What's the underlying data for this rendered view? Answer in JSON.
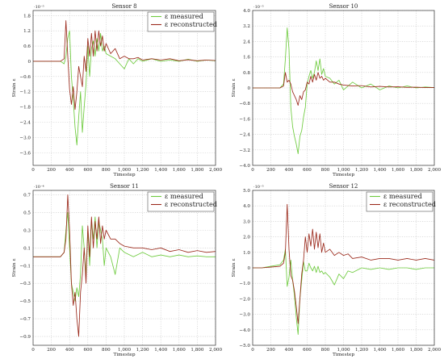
{
  "colors": {
    "measured": "#6ecb3e",
    "reconstructed": "#9b2a1c",
    "grid": "#c8c8c8"
  },
  "chart_data": [
    {
      "type": "line",
      "title": "Sensor 8",
      "xlabel": "Timestep",
      "ylabel": "Strain ε",
      "exponent": "·10⁻⁵",
      "xlim": [
        0,
        2000
      ],
      "ylim": [
        -4.1,
        2.0
      ],
      "grid": true,
      "legend": "top-right",
      "xticks": [
        0,
        200,
        400,
        600,
        800,
        1000,
        1200,
        1400,
        1600,
        1800,
        2000
      ],
      "xtick_labels": [
        "0",
        "200",
        "400",
        "600",
        "800",
        "1,000",
        "1,200",
        "1,400",
        "1,600",
        "1,800",
        "2,000"
      ],
      "yticks": [
        1.8,
        1.2,
        0.6,
        0,
        -0.6,
        -1.2,
        -1.8,
        -2.4,
        -3.0,
        -3.6
      ],
      "ytick_labels": [
        "1.8",
        "1.2",
        "0.6",
        "0",
        "−0.6",
        "−1.2",
        "−1.8",
        "−2.4",
        "−3.0",
        "−3.6"
      ],
      "series": [
        {
          "name": "ε measured",
          "key": "measured",
          "x": [
            0,
            100,
            200,
            300,
            340,
            360,
            380,
            400,
            420,
            440,
            460,
            480,
            500,
            520,
            540,
            560,
            580,
            600,
            620,
            640,
            660,
            680,
            700,
            720,
            740,
            760,
            780,
            800,
            850,
            900,
            950,
            1000,
            1050,
            1100,
            1150,
            1200,
            1300,
            1400,
            1500,
            1600,
            1700,
            1800,
            1900,
            2000
          ],
          "y": [
            0,
            0,
            0,
            0,
            -0.1,
            0.2,
            0.9,
            1.2,
            -0.6,
            -1.5,
            -2.6,
            -3.3,
            -2.2,
            -1.2,
            -2.8,
            -1.8,
            -0.9,
            0.6,
            -0.6,
            0.5,
            0.8,
            0.2,
            0.9,
            0.4,
            1.1,
            0.4,
            0.6,
            0.3,
            0.2,
            0.1,
            -0.1,
            -0.3,
            0.1,
            -0.1,
            0.1,
            0,
            0.1,
            0,
            0.05,
            0,
            0.08,
            0,
            0.05,
            0.02
          ]
        },
        {
          "name": "ε reconstructed",
          "key": "reconstructed",
          "x": [
            0,
            100,
            200,
            300,
            340,
            360,
            380,
            400,
            420,
            440,
            460,
            480,
            500,
            520,
            540,
            560,
            580,
            600,
            620,
            640,
            660,
            680,
            700,
            720,
            740,
            760,
            780,
            800,
            850,
            900,
            950,
            1000,
            1050,
            1100,
            1150,
            1200,
            1300,
            1400,
            1500,
            1600,
            1700,
            1800,
            1900,
            2000
          ],
          "y": [
            0,
            0,
            0,
            0,
            0.1,
            1.6,
            0.2,
            -1.1,
            -1.7,
            -1.0,
            -1.9,
            -1.2,
            -0.2,
            -0.6,
            -1.0,
            0.2,
            -0.4,
            0.9,
            0.2,
            1.1,
            0.2,
            1.2,
            0.4,
            1.2,
            0.6,
            1.0,
            0.4,
            0.7,
            0.3,
            0.5,
            0.1,
            0.2,
            0.1,
            0.1,
            0.15,
            0.05,
            0.1,
            0.05,
            0.1,
            0.02,
            0.06,
            0.02,
            0.05,
            0.03
          ]
        }
      ]
    },
    {
      "type": "line",
      "title": "Sensor 10",
      "xlabel": "Timestep",
      "ylabel": "Strain ε",
      "exponent": "·10⁻⁵",
      "xlim": [
        0,
        2000
      ],
      "ylim": [
        -4.0,
        4.0
      ],
      "grid": true,
      "legend": "top-right",
      "xticks": [
        0,
        200,
        400,
        600,
        800,
        1000,
        1200,
        1400,
        1600,
        1800,
        2000
      ],
      "xtick_labels": [
        "0",
        "200",
        "400",
        "600",
        "800",
        "1,000",
        "1,200",
        "1,400",
        "1,600",
        "1,800",
        "2,000"
      ],
      "yticks": [
        4.0,
        3.2,
        2.4,
        1.6,
        0.8,
        0,
        -0.8,
        -1.6,
        -2.4,
        -3.2,
        -4.0
      ],
      "ytick_labels": [
        "4.0",
        "3.2",
        "2.4",
        "1.6",
        "0.8",
        "0",
        "−0.8",
        "−1.6",
        "−2.4",
        "−3.2",
        "−4.0"
      ],
      "series": [
        {
          "name": "ε measured",
          "key": "measured",
          "x": [
            0,
            100,
            200,
            300,
            340,
            360,
            380,
            400,
            420,
            440,
            460,
            480,
            500,
            520,
            540,
            560,
            580,
            600,
            620,
            640,
            660,
            680,
            700,
            720,
            740,
            760,
            780,
            800,
            850,
            900,
            950,
            1000,
            1100,
            1200,
            1300,
            1400,
            1500,
            1600,
            1700,
            1800,
            1900,
            2000
          ],
          "y": [
            0,
            0,
            0,
            0,
            0.2,
            1.5,
            3.1,
            2.0,
            -1.0,
            -2.0,
            -2.5,
            -2.9,
            -3.4,
            -2.5,
            -2.2,
            -1.5,
            -1.0,
            0.2,
            0.6,
            0.9,
            0.5,
            0.8,
            1.4,
            0.9,
            1.5,
            0.7,
            1.0,
            0.6,
            0.5,
            0.2,
            0.4,
            -0.1,
            0.3,
            0.0,
            0.2,
            -0.1,
            0.1,
            0.0,
            0.1,
            0.0,
            0.05,
            0.02
          ]
        },
        {
          "name": "ε reconstructed",
          "key": "reconstructed",
          "x": [
            0,
            100,
            200,
            300,
            340,
            360,
            380,
            400,
            420,
            440,
            460,
            480,
            500,
            520,
            540,
            560,
            580,
            600,
            620,
            640,
            660,
            680,
            700,
            720,
            740,
            760,
            780,
            800,
            850,
            900,
            950,
            1000,
            1100,
            1200,
            1300,
            1400,
            1500,
            1600,
            1700,
            1800,
            1900,
            2000
          ],
          "y": [
            0,
            0,
            0,
            0,
            0.1,
            0.8,
            0.3,
            0.4,
            0.2,
            -0.2,
            -0.4,
            -0.6,
            -0.9,
            -0.4,
            -0.6,
            -0.2,
            -0.1,
            0.3,
            0.2,
            0.6,
            0.3,
            0.7,
            0.4,
            0.8,
            0.5,
            0.6,
            0.4,
            0.5,
            0.3,
            0.3,
            0.2,
            0.15,
            0.1,
            0.12,
            0.05,
            0.08,
            0.05,
            0.06,
            0.03,
            0.04,
            0.02,
            0.02
          ]
        }
      ]
    },
    {
      "type": "line",
      "title": "Sensor 11",
      "xlabel": "Timestep",
      "ylabel": "Strain ε",
      "exponent": "·10⁻⁴",
      "xlim": [
        0,
        2000
      ],
      "ylim": [
        -1.0,
        0.75
      ],
      "grid": true,
      "legend": "top-right",
      "xticks": [
        0,
        200,
        400,
        600,
        800,
        1000,
        1200,
        1400,
        1600,
        1800,
        2000
      ],
      "xtick_labels": [
        "0",
        "200",
        "400",
        "600",
        "800",
        "1,000",
        "1,200",
        "1,400",
        "1,600",
        "1,800",
        "2,000"
      ],
      "yticks": [
        0.7,
        0.5,
        0.3,
        0.1,
        -0.1,
        -0.3,
        -0.5,
        -0.7,
        -0.9
      ],
      "ytick_labels": [
        "0.7",
        "0.5",
        "0.3",
        "0.1",
        "−0.1",
        "−0.3",
        "−0.5",
        "−0.7",
        "−0.9"
      ],
      "series": [
        {
          "name": "ε measured",
          "key": "measured",
          "x": [
            0,
            100,
            200,
            300,
            340,
            360,
            380,
            400,
            420,
            440,
            460,
            480,
            500,
            520,
            540,
            560,
            580,
            600,
            620,
            640,
            660,
            680,
            700,
            720,
            740,
            760,
            780,
            800,
            850,
            900,
            950,
            1000,
            1100,
            1200,
            1300,
            1400,
            1500,
            1600,
            1700,
            1800,
            1900,
            2000
          ],
          "y": [
            0,
            0,
            0,
            0,
            0.05,
            0.3,
            0.5,
            0.1,
            -0.3,
            -0.4,
            -0.5,
            -0.35,
            -0.45,
            -0.2,
            0.35,
            0.1,
            -0.2,
            0.3,
            -0.1,
            0.4,
            0.2,
            0.45,
            0.1,
            0.4,
            0.3,
            0.2,
            -0.1,
            0.1,
            0.0,
            -0.2,
            0.1,
            0.05,
            0.0,
            0.05,
            0.0,
            0.02,
            0.0,
            0.02,
            0.0,
            0.01,
            0.0,
            0.0
          ]
        },
        {
          "name": "ε reconstructed",
          "key": "reconstructed",
          "x": [
            0,
            100,
            200,
            300,
            340,
            360,
            380,
            400,
            420,
            440,
            460,
            480,
            500,
            520,
            540,
            560,
            580,
            600,
            620,
            640,
            660,
            680,
            700,
            720,
            740,
            760,
            780,
            800,
            850,
            900,
            950,
            1000,
            1100,
            1200,
            1300,
            1400,
            1500,
            1600,
            1700,
            1800,
            1900,
            2000
          ],
          "y": [
            0,
            0,
            0,
            0,
            0.05,
            0.2,
            0.7,
            0.3,
            -0.3,
            -0.55,
            -0.4,
            -0.7,
            -0.9,
            -0.4,
            -0.2,
            0.1,
            -0.3,
            0.35,
            0.0,
            0.45,
            0.1,
            0.4,
            0.2,
            0.45,
            0.15,
            0.35,
            0.2,
            0.3,
            0.2,
            0.2,
            0.15,
            0.12,
            0.1,
            0.1,
            0.08,
            0.1,
            0.06,
            0.08,
            0.05,
            0.07,
            0.05,
            0.06
          ]
        }
      ]
    },
    {
      "type": "line",
      "title": "Sensor 12",
      "xlabel": "Timestep",
      "ylabel": "Strain ε",
      "exponent": "·10⁻⁵",
      "xlim": [
        0,
        2000
      ],
      "ylim": [
        -5.0,
        5.0
      ],
      "grid": true,
      "legend": "top-right",
      "xticks": [
        0,
        200,
        400,
        600,
        800,
        1000,
        1200,
        1400,
        1600,
        1800,
        2000
      ],
      "xtick_labels": [
        "0",
        "200",
        "400",
        "600",
        "800",
        "1,000",
        "1,200",
        "1,400",
        "1,600",
        "1,800",
        "2,000"
      ],
      "yticks": [
        5.0,
        4.0,
        3.0,
        2.0,
        1.0,
        0,
        -1.0,
        -2.0,
        -3.0,
        -4.0,
        -5.0
      ],
      "ytick_labels": [
        "5.0",
        "4.0",
        "3.0",
        "2.0",
        "1.0",
        "0",
        "−1.0",
        "−2.0",
        "−3.0",
        "−4.0",
        "−5.0"
      ],
      "series": [
        {
          "name": "ε measured",
          "key": "measured",
          "x": [
            0,
            100,
            200,
            300,
            340,
            360,
            380,
            400,
            420,
            440,
            460,
            480,
            500,
            520,
            540,
            560,
            580,
            600,
            620,
            640,
            660,
            680,
            700,
            720,
            740,
            760,
            780,
            800,
            850,
            900,
            950,
            1000,
            1050,
            1100,
            1200,
            1300,
            1400,
            1500,
            1600,
            1700,
            1800,
            1900,
            2000
          ],
          "y": [
            0,
            0,
            0.1,
            0.2,
            0.5,
            1.2,
            -1.2,
            -0.6,
            0.5,
            -0.8,
            -1.8,
            -3.2,
            -4.3,
            -2.0,
            -0.8,
            0.4,
            -0.2,
            -0.2,
            0.3,
            0.0,
            -0.2,
            0.1,
            -0.3,
            0.1,
            -0.3,
            -0.2,
            -0.4,
            -0.3,
            -0.6,
            -1.1,
            -0.4,
            -0.7,
            -0.2,
            -0.3,
            0.0,
            -0.1,
            0.0,
            -0.1,
            0.0,
            0.0,
            -0.1,
            0.0,
            0.0
          ]
        },
        {
          "name": "ε reconstructed",
          "key": "reconstructed",
          "x": [
            0,
            100,
            200,
            300,
            340,
            360,
            380,
            400,
            420,
            440,
            460,
            480,
            500,
            520,
            540,
            560,
            580,
            600,
            620,
            640,
            660,
            680,
            700,
            720,
            740,
            760,
            780,
            800,
            850,
            900,
            950,
            1000,
            1050,
            1100,
            1200,
            1300,
            1400,
            1500,
            1600,
            1700,
            1800,
            1900,
            2000
          ],
          "y": [
            0,
            0,
            0.05,
            0.1,
            0.3,
            1.0,
            4.1,
            1.2,
            -0.5,
            -0.8,
            -1.5,
            -2.5,
            -3.6,
            -2.0,
            -0.4,
            0.5,
            2.0,
            1.0,
            2.2,
            1.4,
            2.5,
            1.2,
            2.3,
            1.3,
            2.2,
            1.0,
            1.6,
            1.0,
            1.2,
            0.8,
            1.0,
            0.8,
            0.9,
            0.6,
            0.7,
            0.5,
            0.6,
            0.6,
            0.5,
            0.6,
            0.5,
            0.6,
            0.5
          ]
        }
      ]
    }
  ]
}
